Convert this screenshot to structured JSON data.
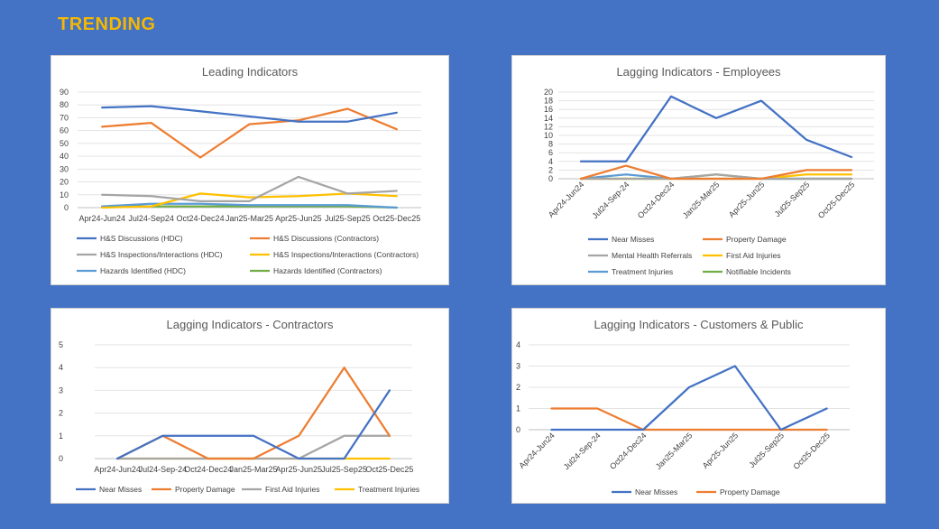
{
  "page": {
    "title": "TRENDING"
  },
  "colors": {
    "blue": "#4472c4",
    "orange": "#ed7d31",
    "gray": "#a5a5a5",
    "yellow": "#ffc000",
    "lightblue": "#5b9bd5",
    "green": "#70ad47"
  },
  "chart_data": [
    {
      "type": "line",
      "title": "Leading Indicators",
      "categories": [
        "Apr24-Jun24",
        "Jul24-Sep24",
        "Oct24-Dec24",
        "Jan25-Mar25",
        "Apr25-Jun25",
        "Jul25-Sep25",
        "Oct25-Dec25"
      ],
      "ylim": [
        0,
        90
      ],
      "yticks": [
        0,
        10,
        20,
        30,
        40,
        50,
        60,
        70,
        80,
        90
      ],
      "grid": true,
      "legend": "bottom",
      "series": [
        {
          "name": "H&S Discussions (HDC)",
          "color": "#4472c4",
          "values": [
            78,
            79,
            75,
            71,
            67,
            67,
            74
          ]
        },
        {
          "name": "H&S Discussions (Contractors)",
          "color": "#ed7d31",
          "values": [
            63,
            66,
            39,
            65,
            68,
            77,
            61
          ]
        },
        {
          "name": "H&S Inspections/Interactions (HDC)",
          "color": "#a5a5a5",
          "values": [
            10,
            9,
            5,
            5,
            24,
            11,
            13
          ]
        },
        {
          "name": "H&S Inspections/Interactions (Contractors)",
          "color": "#ffc000",
          "values": [
            0,
            1,
            11,
            8,
            9,
            11,
            9
          ]
        },
        {
          "name": "Hazards Identified (HDC)",
          "color": "#5b9bd5",
          "values": [
            1,
            3,
            3,
            2,
            2,
            2,
            0
          ]
        },
        {
          "name": "Hazards Identified (Contractors)",
          "color": "#70ad47",
          "values": [
            1,
            1,
            1,
            1,
            1,
            1,
            0
          ]
        }
      ]
    },
    {
      "type": "line",
      "title": "Lagging Indicators - Employees",
      "categories": [
        "Apr24-Jun24",
        "Jul24-Sep-24",
        "Oct24-Dec24",
        "Jan25-Mar25",
        "Apr25-Jun25",
        "Jul25-Sep25",
        "Oct25-Dec25"
      ],
      "ylim": [
        0,
        20
      ],
      "yticks": [
        0,
        2,
        4,
        6,
        8,
        10,
        12,
        14,
        16,
        18,
        20
      ],
      "grid": true,
      "legend": "bottom",
      "series": [
        {
          "name": "Near Misses",
          "color": "#4472c4",
          "values": [
            4,
            4,
            19,
            14,
            18,
            9,
            5
          ]
        },
        {
          "name": "Property Damage",
          "color": "#ed7d31",
          "values": [
            0,
            3,
            0,
            0,
            0,
            2,
            2
          ]
        },
        {
          "name": "Mental Health Referrals",
          "color": "#a5a5a5",
          "values": [
            0,
            0,
            0,
            1,
            0,
            0,
            0
          ]
        },
        {
          "name": "First Aid Injuries",
          "color": "#ffc000",
          "values": [
            0,
            0,
            0,
            0,
            0,
            1,
            1
          ]
        },
        {
          "name": "Treatment Injuries",
          "color": "#5b9bd5",
          "values": [
            0,
            1,
            0,
            0,
            0,
            0,
            0
          ]
        },
        {
          "name": "Notifiable Incidents",
          "color": "#70ad47",
          "values": [
            0,
            0,
            0,
            1,
            0,
            0,
            0
          ]
        }
      ]
    },
    {
      "type": "line",
      "title": "Lagging Indicators - Contractors",
      "categories": [
        "Apr24-Jun24",
        "Jul24-Sep-24",
        "Oct24-Dec24",
        "Jan25-Mar25",
        "Apr25-Jun25",
        "Jul25-Sep25",
        "Oct25-Dec25"
      ],
      "ylim": [
        0,
        5
      ],
      "yticks": [
        0,
        1,
        2,
        3,
        4,
        5
      ],
      "grid": true,
      "legend": "bottom",
      "series": [
        {
          "name": "Near Misses",
          "color": "#4472c4",
          "values": [
            0,
            1,
            1,
            1,
            0,
            0,
            3
          ]
        },
        {
          "name": "Property Damage",
          "color": "#ed7d31",
          "values": [
            0,
            1,
            0,
            0,
            1,
            4,
            1
          ]
        },
        {
          "name": "First Aid Injuries",
          "color": "#a5a5a5",
          "values": [
            0,
            0,
            0,
            0,
            0,
            1,
            1
          ]
        },
        {
          "name": "Treatment Injuries",
          "color": "#ffc000",
          "values": [
            0,
            0,
            0,
            0,
            0,
            0,
            0
          ]
        }
      ]
    },
    {
      "type": "line",
      "title": "Lagging Indicators - Customers & Public",
      "categories": [
        "Apr24-Jun24",
        "Jul24-Sep-24",
        "Oct24-Dec24",
        "Jan25-Mar25",
        "Apr25-Jun25",
        "Jul25-Sep25",
        "Oct25-Dec25"
      ],
      "ylim": [
        0,
        4
      ],
      "yticks": [
        0,
        1,
        2,
        3,
        4
      ],
      "grid": true,
      "legend": "bottom",
      "series": [
        {
          "name": "Near Misses",
          "color": "#4472c4",
          "values": [
            0,
            0,
            0,
            2,
            3,
            0,
            1
          ]
        },
        {
          "name": "Property Damage",
          "color": "#ed7d31",
          "values": [
            1,
            1,
            0,
            0,
            0,
            0,
            0
          ]
        }
      ]
    }
  ]
}
